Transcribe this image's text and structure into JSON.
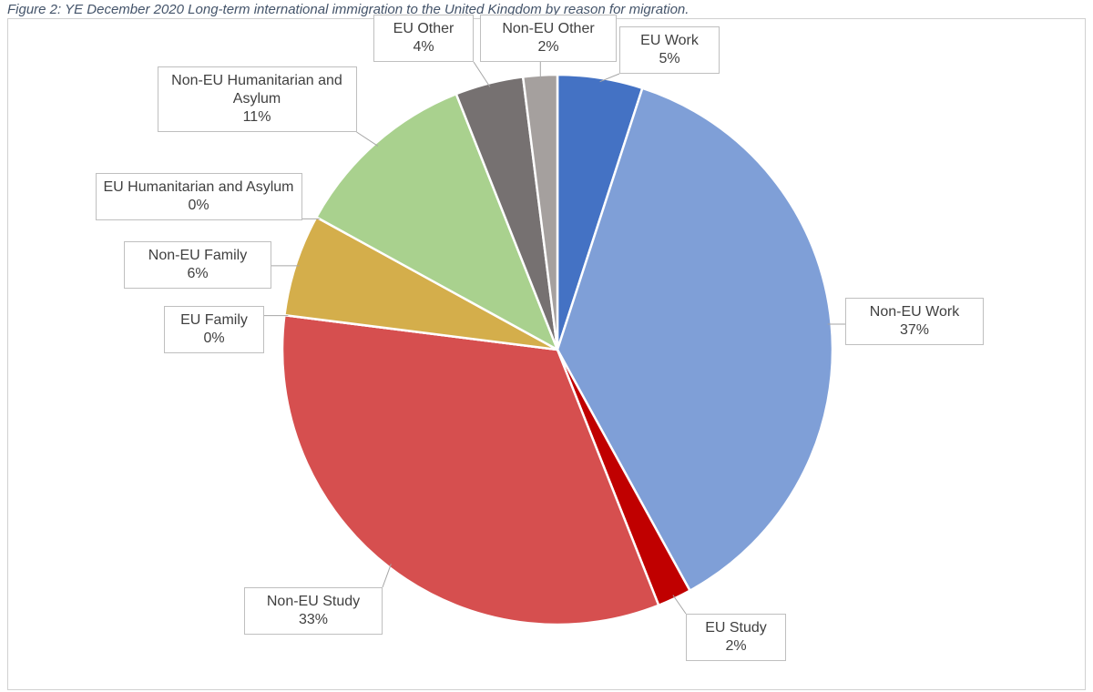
{
  "chart_data": {
    "type": "pie",
    "title": "Figure 2: YE December 2020 Long-term international immigration to the United Kingdom by reason for migration.",
    "categories": [
      "EU Work",
      "Non-EU Work",
      "EU Study",
      "Non-EU Study",
      "EU Family",
      "Non-EU Family",
      "EU Humanitarian and Asylum",
      "Non-EU Humanitarian and Asylum",
      "EU Other",
      "Non-EU Other"
    ],
    "values": [
      5,
      37,
      2,
      33,
      0,
      6,
      0,
      11,
      4,
      2
    ],
    "value_labels": [
      "5%",
      "37%",
      "2%",
      "33%",
      "0%",
      "6%",
      "0%",
      "11%",
      "4%",
      "2%"
    ],
    "colors": [
      "#4472c4",
      "#7f9fd7",
      "#c00000",
      "#d64f4f",
      "#c58a3a",
      "#d4ae4b",
      "#70ad47",
      "#a9d18e",
      "#767171",
      "#a5a09e"
    ]
  }
}
